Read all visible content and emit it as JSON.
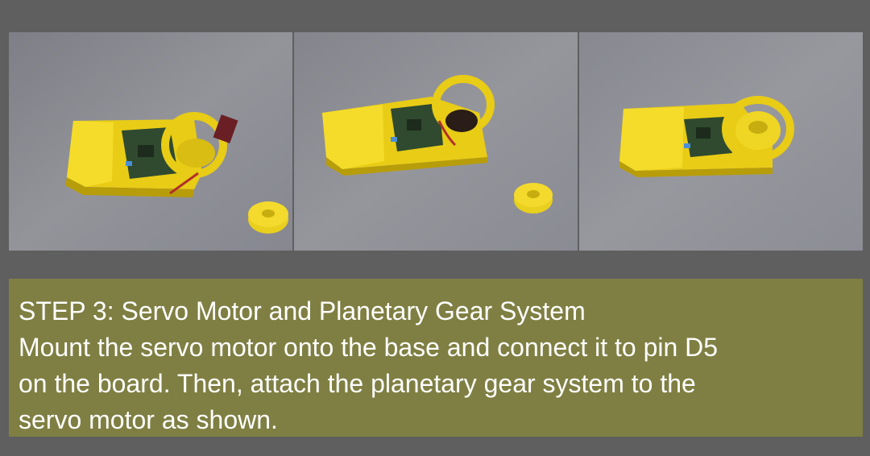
{
  "photos": [
    {
      "description_icon": "servo-base-photo-1"
    },
    {
      "description_icon": "servo-base-photo-2"
    },
    {
      "description_icon": "servo-base-photo-3"
    }
  ],
  "colors": {
    "background": "#5f5f5f",
    "caption_bg": "#7f7f43",
    "caption_text": "#ffffff",
    "base_yellow": "#f2d51c"
  },
  "caption": {
    "title": "STEP 3: Servo Motor and Planetary Gear System",
    "line1": "Mount the servo motor onto the base and connect it to pin D5",
    "line2": "on the board. Then, attach the planetary gear system to the",
    "line3": "servo motor as shown."
  }
}
